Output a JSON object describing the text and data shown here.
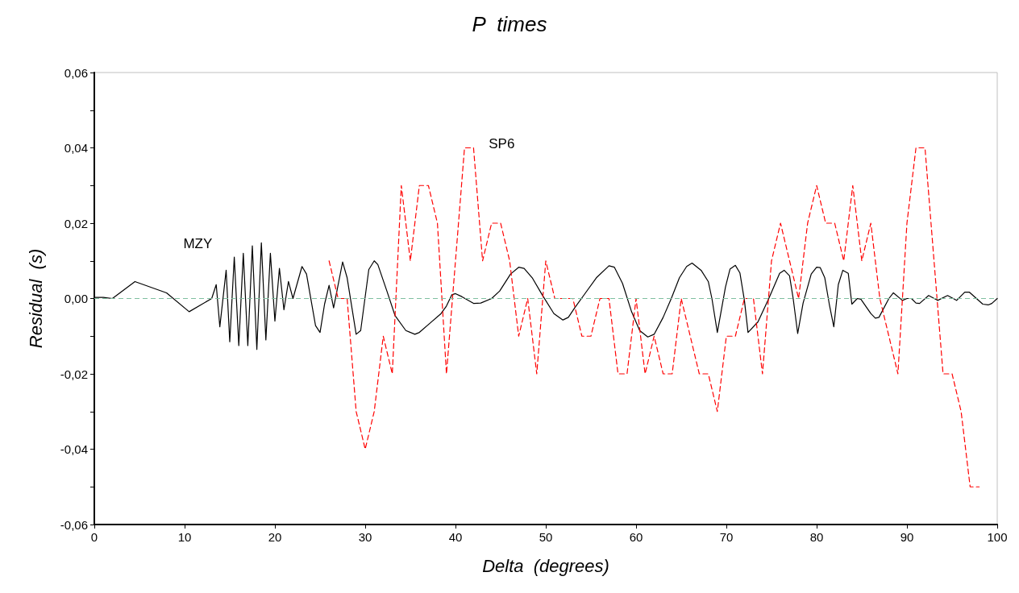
{
  "chart_data": {
    "type": "line",
    "title": "P  times",
    "xlabel": "Delta  (degrees)",
    "ylabel": "Residual  (s)",
    "xlim": [
      0,
      100
    ],
    "xticks": [
      0,
      10,
      20,
      30,
      40,
      50,
      60,
      70,
      80,
      90,
      100
    ],
    "ylim": [
      -0.06,
      0.06
    ],
    "yticks": [
      {
        "value": -0.06,
        "label": "-0,06"
      },
      {
        "value": -0.05,
        "label": null
      },
      {
        "value": -0.04,
        "label": "-0,04"
      },
      {
        "value": -0.03,
        "label": null
      },
      {
        "value": -0.02,
        "label": "-0,02"
      },
      {
        "value": -0.01,
        "label": null
      },
      {
        "value": 0,
        "label": "0,00"
      },
      {
        "value": 0.01,
        "label": null
      },
      {
        "value": 0.02,
        "label": "0,02"
      },
      {
        "value": 0.03,
        "label": null
      },
      {
        "value": 0.04,
        "label": "0,04"
      },
      {
        "value": 0.05,
        "label": null
      },
      {
        "value": 0.06,
        "label": "0,06"
      }
    ],
    "grid": false,
    "marker": "none",
    "ref_lines": [
      {
        "axis": "y",
        "value": 0,
        "color": "#7fbfa0",
        "line_style": "dashed"
      }
    ],
    "series": [
      {
        "name": "MZY",
        "color": "#000000",
        "line_style": "solid",
        "x": [
          0,
          1,
          2,
          4.5,
          8,
          10.5,
          13,
          13.5,
          13.9,
          14.6,
          15,
          15.5,
          16,
          16.5,
          17,
          17.5,
          18,
          18.5,
          19,
          19.5,
          20,
          20.5,
          21,
          21.5,
          22,
          23,
          23.5,
          24.5,
          25,
          25.5,
          26,
          26.5,
          27.5,
          28,
          29,
          29.5,
          30.4,
          31,
          31.4,
          32.4,
          33.3,
          34.5,
          35.5,
          36,
          37.2,
          38.4,
          39,
          39.6,
          40,
          40.7,
          42,
          42.8,
          44,
          44.9,
          46.1,
          47,
          47.6,
          48.5,
          49.6,
          50.9,
          51.9,
          52.5,
          53.2,
          54.4,
          55.6,
          57,
          57.6,
          58.5,
          59.5,
          60.4,
          61.3,
          62,
          63,
          63.9,
          64.8,
          65.6,
          66.2,
          67.2,
          68,
          68.4,
          69,
          69.9,
          70.4,
          71,
          71.5,
          72,
          72.4,
          73.5,
          74.7,
          75.9,
          76.4,
          77,
          77.4,
          77.9,
          78.5,
          79.4,
          80,
          80.4,
          80.9,
          81.4,
          81.9,
          82.4,
          82.9,
          83.5,
          83.9,
          84.5,
          84.9,
          86,
          86.5,
          86.9,
          88,
          88.5,
          89.5,
          90,
          90.5,
          91,
          91.4,
          92.4,
          93.4,
          94.5,
          95.5,
          96.4,
          96.9,
          98.4,
          99,
          99.4,
          100
        ],
        "values": [
          0.0003,
          0.0003,
          0,
          0.0045,
          0.0015,
          -0.0035,
          0,
          0.0037,
          -0.0075,
          0.0075,
          -0.0115,
          0.011,
          -0.0125,
          0.012,
          -0.0125,
          0.014,
          -0.0135,
          0.0148,
          -0.011,
          0.012,
          -0.006,
          0.008,
          -0.003,
          0.0045,
          0,
          0.0085,
          0.0065,
          -0.0072,
          -0.009,
          -0.0015,
          0.0035,
          -0.0025,
          0.0097,
          0.0055,
          -0.0095,
          -0.0085,
          0.0077,
          0.01,
          0.009,
          0.002,
          -0.0045,
          -0.0085,
          -0.0095,
          -0.009,
          -0.0065,
          -0.004,
          -0.002,
          0.001,
          0.0013,
          0.0005,
          -0.0013,
          -0.0012,
          0,
          0.002,
          0.0065,
          0.0083,
          0.008,
          0.0055,
          0.001,
          -0.004,
          -0.0057,
          -0.005,
          -0.0025,
          0.0015,
          0.0055,
          0.0087,
          0.0083,
          0.004,
          -0.0035,
          -0.0085,
          -0.0102,
          -0.0095,
          -0.005,
          0,
          0.0055,
          0.0085,
          0.0094,
          0.0075,
          0.0045,
          0,
          -0.009,
          0.003,
          0.0078,
          0.0088,
          0.0068,
          -0.0005,
          -0.009,
          -0.0062,
          0,
          0.0067,
          0.0075,
          0.006,
          0,
          -0.0093,
          -0.0012,
          0.0065,
          0.0083,
          0.0082,
          0.0055,
          -0.0015,
          -0.0075,
          0.0037,
          0.0075,
          0.0067,
          -0.0015,
          0,
          -0.0002,
          -0.004,
          -0.0052,
          -0.005,
          0,
          0.0015,
          -0.0005,
          0,
          0,
          -0.0012,
          -0.0013,
          0.0008,
          -0.0005,
          0.0008,
          -0.0005,
          0.0017,
          0.0017,
          -0.0015,
          -0.0017,
          -0.0013,
          0
        ]
      },
      {
        "name": "SP6",
        "color": "#ff0000",
        "line_style": "dashed",
        "x": [
          26,
          27,
          28,
          29,
          30,
          31,
          32,
          33,
          34,
          35,
          36,
          37,
          38,
          39,
          40,
          41,
          42,
          43,
          44,
          45,
          46,
          47,
          48,
          49,
          50,
          51,
          52,
          53,
          54,
          55,
          56,
          57,
          58,
          59,
          60,
          61,
          62,
          63,
          64,
          65,
          66,
          67,
          68,
          69,
          70,
          71,
          72,
          73,
          74,
          75,
          76,
          77,
          78,
          79,
          80,
          81,
          82,
          83,
          84,
          85,
          86,
          87,
          88,
          89,
          90,
          91,
          92,
          93,
          94,
          95,
          96,
          97,
          98
        ],
        "values": [
          0.01,
          0,
          0,
          -0.03,
          -0.04,
          -0.03,
          -0.01,
          -0.02,
          0.03,
          0.01,
          0.03,
          0.03,
          0.02,
          -0.02,
          0.01,
          0.04,
          0.04,
          0.01,
          0.02,
          0.02,
          0.01,
          -0.01,
          0,
          -0.02,
          0.01,
          0,
          0,
          0,
          -0.01,
          -0.01,
          0,
          0,
          -0.02,
          -0.02,
          0,
          -0.02,
          -0.01,
          -0.02,
          -0.02,
          0,
          -0.01,
          -0.02,
          -0.02,
          -0.03,
          -0.01,
          -0.01,
          0,
          0,
          -0.02,
          0.01,
          0.02,
          0.01,
          0,
          0.02,
          0.03,
          0.02,
          0.02,
          0.01,
          0.03,
          0.01,
          0.02,
          0,
          -0.01,
          -0.02,
          0.02,
          0.04,
          0.04,
          0.01,
          -0.02,
          -0.02,
          -0.03,
          -0.05,
          -0.05
        ]
      }
    ]
  }
}
